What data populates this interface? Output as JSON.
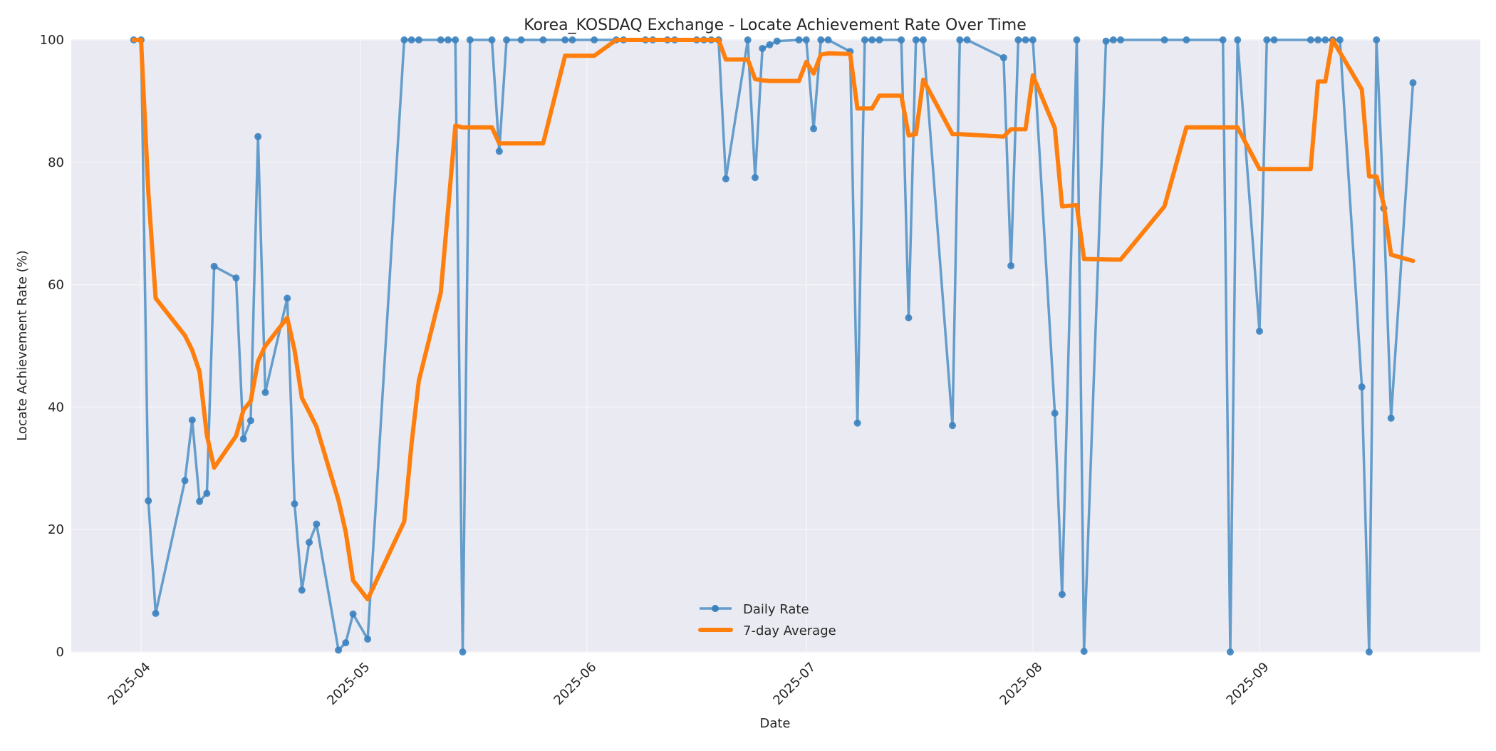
{
  "chart_data": {
    "type": "line",
    "title": "Korea_KOSDAQ Exchange - Locate Achievement Rate Over Time",
    "xlabel": "Date",
    "ylabel": "Locate Achievement Rate (%)",
    "ylim": [
      0,
      100
    ],
    "xlim": [
      "2025-03-25",
      "2025-10-01"
    ],
    "grid": true,
    "legend_position": "lower center",
    "x_tick_labels": [
      "2025-04",
      "2025-05",
      "2025-06",
      "2025-07",
      "2025-08",
      "2025-09"
    ],
    "y_tick_labels": [
      "0",
      "20",
      "40",
      "60",
      "80",
      "100"
    ],
    "colors": {
      "daily": "#4c8fc4",
      "average": "#ff7f0e",
      "plot_bg": "#eaeaf2",
      "grid": "#f4f4f8"
    },
    "series": [
      {
        "name": "Daily Rate",
        "style": "line-with-markers",
        "points": [
          [
            "2025-03-31",
            100
          ],
          [
            "2025-04-01",
            100
          ],
          [
            "2025-04-02",
            24.7
          ],
          [
            "2025-04-03",
            6.3
          ],
          [
            "2025-04-07",
            28.0
          ],
          [
            "2025-04-08",
            37.9
          ],
          [
            "2025-04-09",
            24.6
          ],
          [
            "2025-04-10",
            25.9
          ],
          [
            "2025-04-11",
            63.0
          ],
          [
            "2025-04-14",
            61.1
          ],
          [
            "2025-04-15",
            34.8
          ],
          [
            "2025-04-16",
            37.8
          ],
          [
            "2025-04-17",
            84.2
          ],
          [
            "2025-04-18",
            42.4
          ],
          [
            "2025-04-21",
            57.8
          ],
          [
            "2025-04-22",
            24.2
          ],
          [
            "2025-04-23",
            10.1
          ],
          [
            "2025-04-24",
            17.9
          ],
          [
            "2025-04-25",
            20.9
          ],
          [
            "2025-04-28",
            0.3
          ],
          [
            "2025-04-29",
            1.5
          ],
          [
            "2025-04-30",
            6.2
          ],
          [
            "2025-05-02",
            2.1
          ],
          [
            "2025-05-07",
            100
          ],
          [
            "2025-05-08",
            100
          ],
          [
            "2025-05-09",
            100
          ],
          [
            "2025-05-12",
            100
          ],
          [
            "2025-05-13",
            100
          ],
          [
            "2025-05-14",
            100
          ],
          [
            "2025-05-15",
            0
          ],
          [
            "2025-05-16",
            100
          ],
          [
            "2025-05-19",
            100
          ],
          [
            "2025-05-20",
            81.8
          ],
          [
            "2025-05-21",
            100
          ],
          [
            "2025-05-23",
            100
          ],
          [
            "2025-05-26",
            100
          ],
          [
            "2025-05-29",
            100
          ],
          [
            "2025-05-30",
            100
          ],
          [
            "2025-06-02",
            100
          ],
          [
            "2025-06-05",
            100
          ],
          [
            "2025-06-06",
            100
          ],
          [
            "2025-06-09",
            100
          ],
          [
            "2025-06-10",
            100
          ],
          [
            "2025-06-12",
            100
          ],
          [
            "2025-06-13",
            100
          ],
          [
            "2025-06-16",
            100
          ],
          [
            "2025-06-17",
            100
          ],
          [
            "2025-06-18",
            100
          ],
          [
            "2025-06-19",
            100
          ],
          [
            "2025-06-20",
            77.3
          ],
          [
            "2025-06-23",
            100
          ],
          [
            "2025-06-24",
            77.5
          ],
          [
            "2025-06-25",
            98.6
          ],
          [
            "2025-06-26",
            99.2
          ],
          [
            "2025-06-27",
            99.8
          ],
          [
            "2025-06-30",
            100
          ],
          [
            "2025-07-01",
            100
          ],
          [
            "2025-07-02",
            85.5
          ],
          [
            "2025-07-03",
            100
          ],
          [
            "2025-07-04",
            100
          ],
          [
            "2025-07-07",
            98.1
          ],
          [
            "2025-07-08",
            37.4
          ],
          [
            "2025-07-09",
            100
          ],
          [
            "2025-07-10",
            100
          ],
          [
            "2025-07-11",
            100
          ],
          [
            "2025-07-14",
            100
          ],
          [
            "2025-07-15",
            54.6
          ],
          [
            "2025-07-16",
            100
          ],
          [
            "2025-07-17",
            100
          ],
          [
            "2025-07-21",
            37.0
          ],
          [
            "2025-07-22",
            100
          ],
          [
            "2025-07-23",
            100
          ],
          [
            "2025-07-28",
            97.1
          ],
          [
            "2025-07-29",
            63.1
          ],
          [
            "2025-07-30",
            100
          ],
          [
            "2025-07-31",
            100
          ],
          [
            "2025-08-01",
            100
          ],
          [
            "2025-08-04",
            39.0
          ],
          [
            "2025-08-05",
            9.4
          ],
          [
            "2025-08-07",
            100
          ],
          [
            "2025-08-08",
            0.1
          ],
          [
            "2025-08-11",
            99.8
          ],
          [
            "2025-08-12",
            100
          ],
          [
            "2025-08-13",
            100
          ],
          [
            "2025-08-19",
            100
          ],
          [
            "2025-08-22",
            100
          ],
          [
            "2025-08-27",
            100
          ],
          [
            "2025-08-28",
            0
          ],
          [
            "2025-08-29",
            100
          ],
          [
            "2025-09-01",
            52.4
          ],
          [
            "2025-09-02",
            100
          ],
          [
            "2025-09-03",
            100
          ],
          [
            "2025-09-08",
            100
          ],
          [
            "2025-09-09",
            100
          ],
          [
            "2025-09-10",
            100
          ],
          [
            "2025-09-11",
            100
          ],
          [
            "2025-09-12",
            100
          ],
          [
            "2025-09-15",
            43.3
          ],
          [
            "2025-09-16",
            0
          ],
          [
            "2025-09-17",
            100
          ],
          [
            "2025-09-18",
            72.5
          ],
          [
            "2025-09-19",
            38.2
          ],
          [
            "2025-09-22",
            93.0
          ]
        ]
      },
      {
        "name": "7-day Average",
        "style": "thick-line",
        "points": [
          [
            "2025-03-31",
            100
          ],
          [
            "2025-04-01",
            100
          ],
          [
            "2025-04-02",
            75.0
          ],
          [
            "2025-04-03",
            57.8
          ],
          [
            "2025-04-07",
            51.7
          ],
          [
            "2025-04-08",
            49.3
          ],
          [
            "2025-04-09",
            45.8
          ],
          [
            "2025-04-10",
            35.4
          ],
          [
            "2025-04-11",
            30.1
          ],
          [
            "2025-04-14",
            35.3
          ],
          [
            "2025-04-15",
            39.5
          ],
          [
            "2025-04-16",
            41.0
          ],
          [
            "2025-04-17",
            47.5
          ],
          [
            "2025-04-18",
            50.0
          ],
          [
            "2025-04-21",
            54.6
          ],
          [
            "2025-04-22",
            49.3
          ],
          [
            "2025-04-23",
            41.5
          ],
          [
            "2025-04-24",
            39.2
          ],
          [
            "2025-04-25",
            36.8
          ],
          [
            "2025-04-28",
            24.8
          ],
          [
            "2025-04-29",
            19.6
          ],
          [
            "2025-04-30",
            11.7
          ],
          [
            "2025-05-02",
            8.6
          ],
          [
            "2025-05-07",
            21.3
          ],
          [
            "2025-05-08",
            34.0
          ],
          [
            "2025-05-09",
            44.3
          ],
          [
            "2025-05-12",
            58.7
          ],
          [
            "2025-05-13",
            72.3
          ],
          [
            "2025-05-14",
            86.0
          ],
          [
            "2025-05-15",
            85.7
          ],
          [
            "2025-05-16",
            85.7
          ],
          [
            "2025-05-19",
            85.7
          ],
          [
            "2025-05-20",
            83.1
          ],
          [
            "2025-05-21",
            83.1
          ],
          [
            "2025-05-26",
            83.1
          ],
          [
            "2025-05-29",
            97.4
          ],
          [
            "2025-06-02",
            97.4
          ],
          [
            "2025-06-05",
            100
          ],
          [
            "2025-06-19",
            100
          ],
          [
            "2025-06-20",
            96.8
          ],
          [
            "2025-06-23",
            96.8
          ],
          [
            "2025-06-24",
            93.6
          ],
          [
            "2025-06-25",
            93.4
          ],
          [
            "2025-06-26",
            93.3
          ],
          [
            "2025-06-30",
            93.3
          ],
          [
            "2025-07-01",
            96.4
          ],
          [
            "2025-07-02",
            94.5
          ],
          [
            "2025-07-03",
            97.6
          ],
          [
            "2025-07-04",
            97.8
          ],
          [
            "2025-07-07",
            97.7
          ],
          [
            "2025-07-08",
            88.8
          ],
          [
            "2025-07-10",
            88.8
          ],
          [
            "2025-07-11",
            90.9
          ],
          [
            "2025-07-14",
            90.9
          ],
          [
            "2025-07-15",
            84.4
          ],
          [
            "2025-07-16",
            84.6
          ],
          [
            "2025-07-17",
            93.5
          ],
          [
            "2025-07-21",
            84.6
          ],
          [
            "2025-07-22",
            84.6
          ],
          [
            "2025-07-28",
            84.2
          ],
          [
            "2025-07-29",
            85.4
          ],
          [
            "2025-07-31",
            85.4
          ],
          [
            "2025-08-01",
            94.2
          ],
          [
            "2025-08-04",
            85.6
          ],
          [
            "2025-08-05",
            72.8
          ],
          [
            "2025-08-07",
            73.0
          ],
          [
            "2025-08-08",
            64.2
          ],
          [
            "2025-08-12",
            64.1
          ],
          [
            "2025-08-13",
            64.1
          ],
          [
            "2025-08-19",
            72.8
          ],
          [
            "2025-08-22",
            85.7
          ],
          [
            "2025-08-29",
            85.7
          ],
          [
            "2025-09-01",
            78.9
          ],
          [
            "2025-09-08",
            78.9
          ],
          [
            "2025-09-09",
            93.2
          ],
          [
            "2025-09-10",
            93.2
          ],
          [
            "2025-09-11",
            100
          ],
          [
            "2025-09-15",
            91.9
          ],
          [
            "2025-09-16",
            77.7
          ],
          [
            "2025-09-17",
            77.7
          ],
          [
            "2025-09-18",
            73.1
          ],
          [
            "2025-09-19",
            64.9
          ],
          [
            "2025-09-22",
            63.9
          ]
        ]
      }
    ]
  },
  "legend": {
    "daily_label": "Daily Rate",
    "average_label": "7-day Average"
  }
}
